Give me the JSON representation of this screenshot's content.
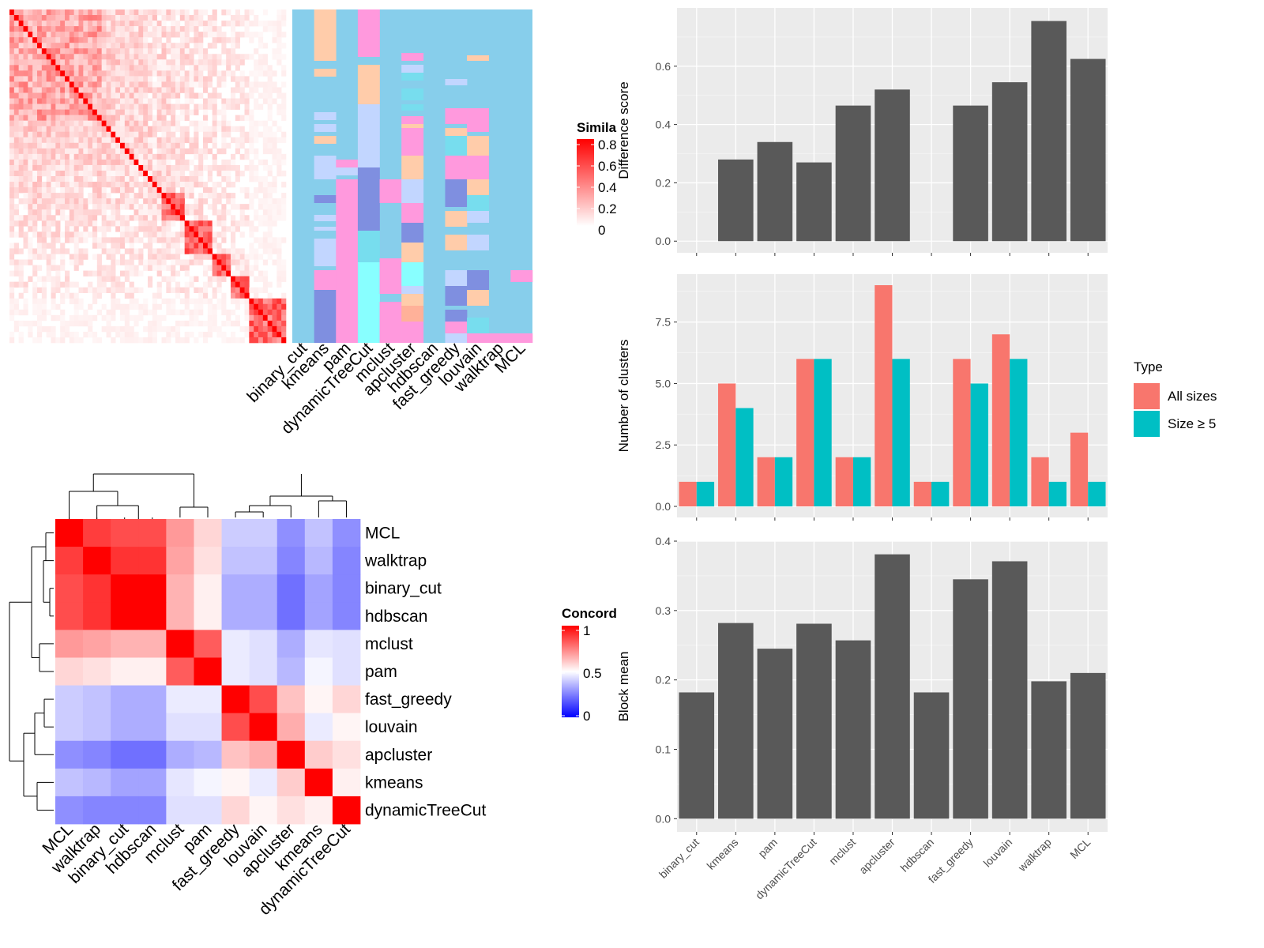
{
  "methods_order": [
    "binary_cut",
    "kmeans",
    "pam",
    "dynamicTreeCut",
    "mclust",
    "apcluster",
    "hdbscan",
    "fast_greedy",
    "louvain",
    "walktrap",
    "MCL"
  ],
  "colors": {
    "panel_bg": "#ebebeb",
    "bar": "#595959",
    "all_sizes": "#f8766d",
    "size_ge5": "#00bfc4",
    "class_bg": "#87ceeb",
    "hot": "#ff0000",
    "cold": "#0000ff"
  },
  "similarity_heatmap": {
    "legend_title": "Simila",
    "legend_ticks": [
      "0.8",
      "0.6",
      "0.4",
      "0.2",
      "0"
    ],
    "n": 60
  },
  "class_matrix": {
    "columns": [
      "binary_cut",
      "kmeans",
      "pam",
      "dynamicTreeCut",
      "mclust",
      "apcluster",
      "hdbscan",
      "fast_greedy",
      "louvain",
      "walktrap",
      "MCL"
    ]
  },
  "concordance_heatmap": {
    "legend_title": "Concord",
    "legend_ticks": [
      "1",
      "0.5",
      "0"
    ],
    "order": [
      "MCL",
      "walktrap",
      "binary_cut",
      "hdbscan",
      "mclust",
      "pam",
      "fast_greedy",
      "louvain",
      "apcluster",
      "kmeans",
      "dynamicTreeCut"
    ],
    "values": [
      [
        1.0,
        0.88,
        0.85,
        0.85,
        0.7,
        0.58,
        0.4,
        0.4,
        0.28,
        0.38,
        0.28
      ],
      [
        0.88,
        1.0,
        0.9,
        0.9,
        0.68,
        0.56,
        0.38,
        0.38,
        0.26,
        0.36,
        0.26
      ],
      [
        0.85,
        0.9,
        1.0,
        1.0,
        0.65,
        0.53,
        0.34,
        0.34,
        0.22,
        0.32,
        0.26
      ],
      [
        0.85,
        0.9,
        1.0,
        1.0,
        0.65,
        0.53,
        0.34,
        0.34,
        0.22,
        0.32,
        0.26
      ],
      [
        0.7,
        0.68,
        0.65,
        0.65,
        1.0,
        0.82,
        0.46,
        0.44,
        0.34,
        0.45,
        0.44
      ],
      [
        0.58,
        0.56,
        0.53,
        0.53,
        0.82,
        1.0,
        0.46,
        0.44,
        0.36,
        0.48,
        0.44
      ],
      [
        0.4,
        0.38,
        0.34,
        0.34,
        0.46,
        0.46,
        1.0,
        0.85,
        0.62,
        0.52,
        0.58
      ],
      [
        0.4,
        0.38,
        0.34,
        0.34,
        0.44,
        0.44,
        0.85,
        1.0,
        0.66,
        0.46,
        0.52
      ],
      [
        0.28,
        0.26,
        0.22,
        0.22,
        0.34,
        0.36,
        0.62,
        0.66,
        1.0,
        0.6,
        0.56
      ],
      [
        0.38,
        0.36,
        0.32,
        0.32,
        0.45,
        0.48,
        0.52,
        0.46,
        0.6,
        1.0,
        0.53
      ],
      [
        0.28,
        0.26,
        0.26,
        0.26,
        0.44,
        0.44,
        0.58,
        0.52,
        0.56,
        0.53,
        1.0
      ]
    ]
  },
  "chart_data": [
    {
      "type": "bar",
      "categories": [
        "binary_cut",
        "kmeans",
        "pam",
        "dynamicTreeCut",
        "mclust",
        "apcluster",
        "hdbscan",
        "fast_greedy",
        "louvain",
        "walktrap",
        "MCL"
      ],
      "values": [
        0,
        0.28,
        0.34,
        0.27,
        0.465,
        0.52,
        0,
        0.465,
        0.545,
        0.755,
        0.625
      ],
      "ylabel": "Difference score",
      "ylim": [
        -0.04,
        0.8
      ],
      "yticks": [
        "0.0",
        "0.2",
        "0.4",
        "0.6"
      ],
      "grid": true
    },
    {
      "type": "bar",
      "categories": [
        "binary_cut",
        "kmeans",
        "pam",
        "dynamicTreeCut",
        "mclust",
        "apcluster",
        "hdbscan",
        "fast_greedy",
        "louvain",
        "walktrap",
        "MCL"
      ],
      "series": [
        {
          "name": "All sizes",
          "values": [
            1,
            5,
            2,
            6,
            2,
            9,
            1,
            6,
            7,
            2,
            3
          ]
        },
        {
          "name": "Size ≥ 5",
          "values": [
            1,
            4,
            2,
            6,
            2,
            6,
            1,
            5,
            6,
            1,
            1
          ]
        }
      ],
      "ylabel": "Number of clusters",
      "ylim": [
        -0.45,
        9.45
      ],
      "yticks": [
        "0.0",
        "2.5",
        "5.0",
        "7.5"
      ],
      "legend_title": "Type",
      "legend_position": "right",
      "grid": true
    },
    {
      "type": "bar",
      "categories": [
        "binary_cut",
        "kmeans",
        "pam",
        "dynamicTreeCut",
        "mclust",
        "apcluster",
        "hdbscan",
        "fast_greedy",
        "louvain",
        "walktrap",
        "MCL"
      ],
      "values": [
        0.182,
        0.282,
        0.245,
        0.281,
        0.257,
        0.381,
        0.182,
        0.345,
        0.371,
        0.198,
        0.21
      ],
      "ylabel": "Block mean",
      "ylim": [
        -0.019,
        0.4
      ],
      "yticks": [
        "0.0",
        "0.1",
        "0.2",
        "0.3",
        "0.4"
      ],
      "grid": true
    }
  ]
}
